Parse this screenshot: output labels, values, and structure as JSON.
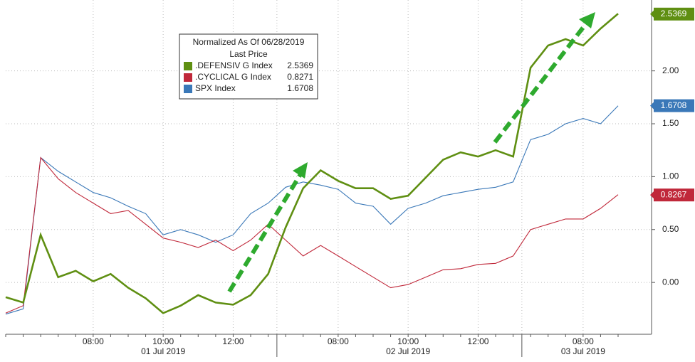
{
  "chart_data": {
    "type": "line",
    "legend_title": "Normalized As Of 06/28/2019",
    "legend_subtitle": "Last Price",
    "categories": [
      null,
      null,
      null,
      null,
      null,
      "08:00",
      null,
      null,
      null,
      "10:00",
      null,
      null,
      null,
      "12:00",
      null,
      null,
      null,
      null,
      null,
      "08:00",
      null,
      null,
      null,
      "10:00",
      null,
      null,
      null,
      "12:00",
      null,
      null,
      null,
      null,
      null,
      "08:00",
      null,
      null
    ],
    "x_groups": [
      null,
      null,
      null,
      null,
      null,
      null,
      null,
      null,
      null,
      "01 Jul 2019",
      null,
      null,
      null,
      null,
      null,
      null,
      null,
      null,
      null,
      null,
      null,
      null,
      null,
      "02 Jul 2019",
      null,
      null,
      null,
      null,
      null,
      null,
      null,
      null,
      null,
      "03 Jul 2019",
      null,
      null
    ],
    "ylim": [
      -0.49,
      2.67
    ],
    "yticks": [
      {
        "value": 0,
        "label": "0.00"
      },
      {
        "value": 0.5,
        "label": "0.50"
      },
      {
        "value": 1,
        "label": "1.00"
      },
      {
        "value": 1.5,
        "label": "1.50"
      },
      {
        "value": 2,
        "label": "2.00"
      }
    ],
    "grid": true,
    "series": [
      {
        "name": ".DEFENSIV G Index",
        "color": "#5f8f12",
        "legend_value": 2.5369,
        "last_value": 2.5369,
        "values": [
          -0.14,
          -0.19,
          0.45,
          0.05,
          0.11,
          0.01,
          0.08,
          -0.05,
          -0.15,
          -0.29,
          -0.22,
          -0.12,
          -0.19,
          -0.21,
          -0.12,
          0.08,
          0.52,
          0.89,
          1.06,
          0.96,
          0.89,
          0.89,
          0.79,
          0.82,
          0.99,
          1.16,
          1.23,
          1.19,
          1.25,
          1.19,
          2.03,
          2.24,
          2.3,
          2.24,
          2.4,
          2.54
        ]
      },
      {
        "name": ".CYCLICAL G Index",
        "color": "#c0283a",
        "legend_value": 0.8271,
        "last_value": 0.8267,
        "values": [
          -0.29,
          -0.22,
          1.18,
          0.98,
          0.85,
          0.75,
          0.65,
          0.68,
          0.55,
          0.42,
          0.38,
          0.33,
          0.4,
          0.3,
          0.4,
          0.55,
          0.4,
          0.25,
          0.35,
          0.25,
          0.15,
          0.05,
          -0.05,
          -0.02,
          0.05,
          0.12,
          0.13,
          0.17,
          0.18,
          0.25,
          0.5,
          0.55,
          0.6,
          0.6,
          0.7,
          0.83
        ]
      },
      {
        "name": "SPX Index",
        "color": "#3a78b8",
        "legend_value": 1.6708,
        "last_value": 1.6708,
        "values": [
          -0.3,
          -0.25,
          1.18,
          1.05,
          0.95,
          0.85,
          0.8,
          0.72,
          0.65,
          0.45,
          0.5,
          0.45,
          0.38,
          0.45,
          0.65,
          0.75,
          0.9,
          0.95,
          0.92,
          0.88,
          0.75,
          0.72,
          0.55,
          0.7,
          0.75,
          0.82,
          0.85,
          0.88,
          0.9,
          0.95,
          1.35,
          1.4,
          1.5,
          1.55,
          1.5,
          1.67
        ]
      }
    ]
  }
}
